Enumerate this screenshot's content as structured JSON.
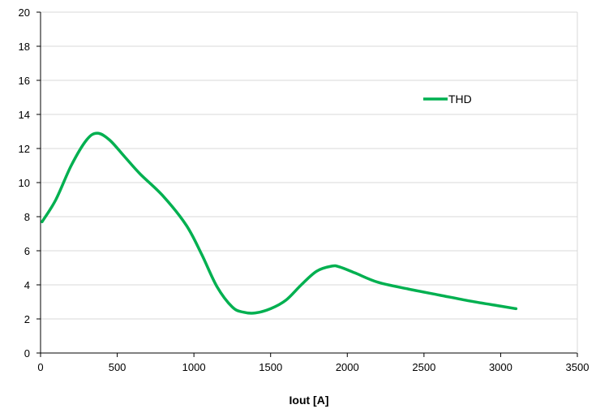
{
  "chart_data": {
    "type": "line",
    "title": "",
    "xlabel": "Iout [A]",
    "ylabel": "",
    "xlim": [
      0,
      3500
    ],
    "ylim": [
      0,
      20
    ],
    "xticks": [
      0,
      500,
      1000,
      1500,
      2000,
      2500,
      3000,
      3500
    ],
    "yticks": [
      0,
      2,
      4,
      6,
      8,
      10,
      12,
      14,
      16,
      18,
      20
    ],
    "grid": "horizontal",
    "legend_position": "top-right",
    "series": [
      {
        "name": "THD",
        "color": "#00b050",
        "x": [
          10,
          100,
          200,
          300,
          370,
          450,
          550,
          650,
          800,
          950,
          1050,
          1150,
          1250,
          1320,
          1400,
          1500,
          1600,
          1700,
          1800,
          1900,
          1950,
          2050,
          2200,
          2400,
          2600,
          2800,
          3000,
          3100
        ],
        "y": [
          7.7,
          9.0,
          11.0,
          12.5,
          12.9,
          12.5,
          11.5,
          10.5,
          9.2,
          7.5,
          5.8,
          3.9,
          2.7,
          2.4,
          2.35,
          2.6,
          3.1,
          4.0,
          4.8,
          5.1,
          5.05,
          4.7,
          4.15,
          3.75,
          3.4,
          3.05,
          2.75,
          2.6
        ]
      }
    ]
  }
}
